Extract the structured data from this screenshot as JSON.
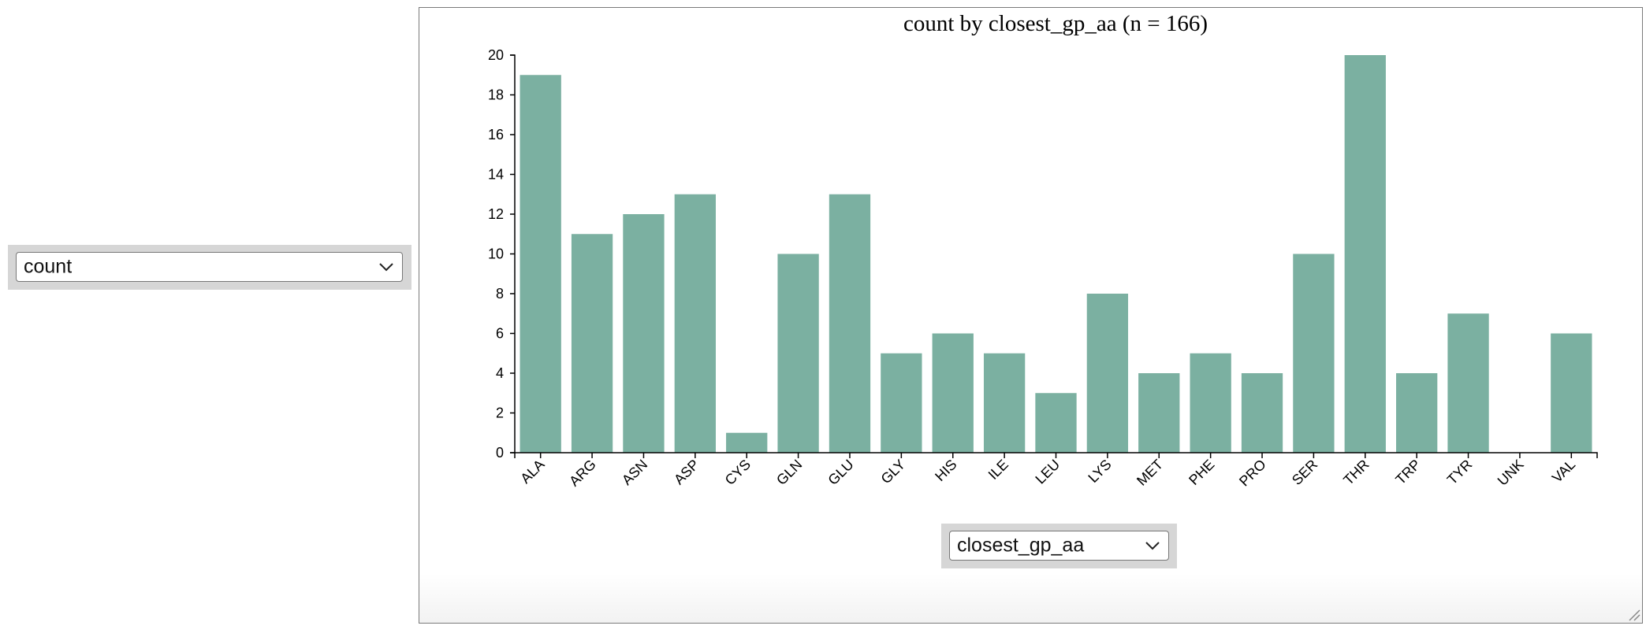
{
  "y_select": {
    "value": "count",
    "icon": "chevron-down-icon"
  },
  "x_select": {
    "value": "closest_gp_aa",
    "icon": "chevron-down-icon"
  },
  "colors": {
    "bar": "#7bb0a1",
    "axis": "#000000",
    "frame_border": "#7a7a7a",
    "select_wrap": "#d6d6d6"
  },
  "chart_data": {
    "type": "bar",
    "title": "count by closest_gp_aa (n = 166)",
    "xlabel": "",
    "ylabel": "",
    "categories": [
      "ALA",
      "ARG",
      "ASN",
      "ASP",
      "CYS",
      "GLN",
      "GLU",
      "GLY",
      "HIS",
      "ILE",
      "LEU",
      "LYS",
      "MET",
      "PHE",
      "PRO",
      "SER",
      "THR",
      "TRP",
      "TYR",
      "UNK",
      "VAL"
    ],
    "values": [
      19,
      11,
      12,
      13,
      1,
      10,
      13,
      5,
      6,
      5,
      3,
      8,
      4,
      5,
      4,
      10,
      20,
      4,
      7,
      0,
      6
    ],
    "ylim": [
      0,
      20
    ],
    "yticks": [
      0,
      2,
      4,
      6,
      8,
      10,
      12,
      14,
      16,
      18,
      20
    ],
    "grid": false,
    "legend": "none"
  }
}
